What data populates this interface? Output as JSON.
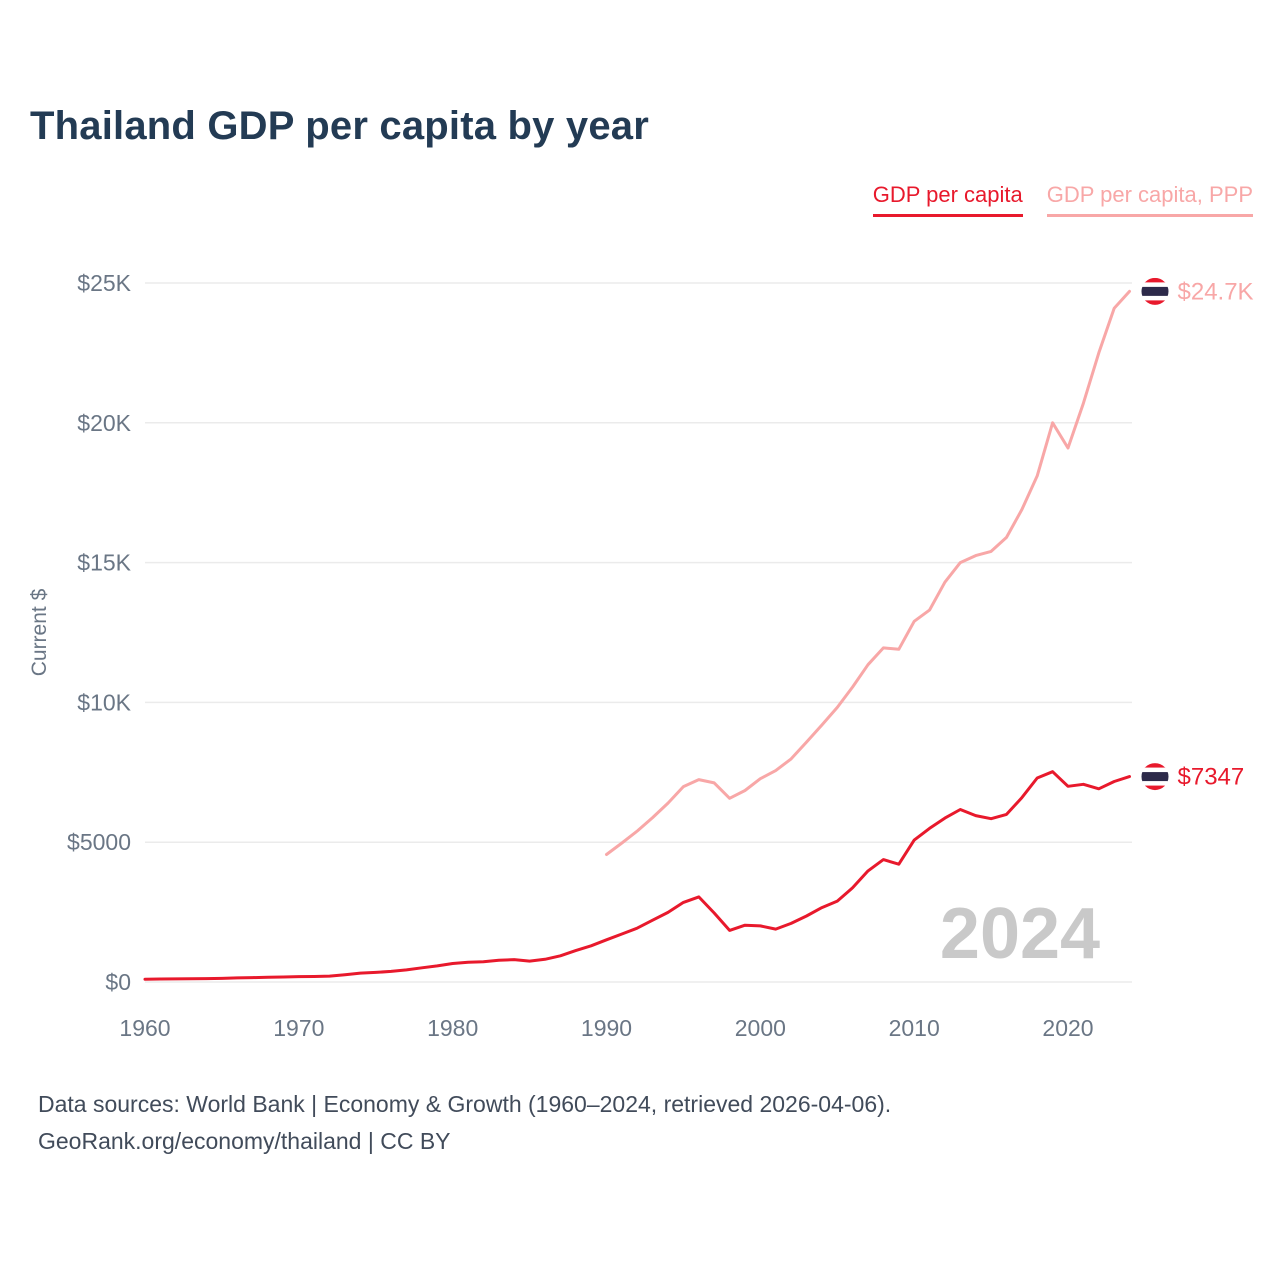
{
  "header": {
    "title": "Thailand GDP per capita by year"
  },
  "footer": {
    "line1": "Data sources: World Bank | Economy & Growth (1960–2024, retrieved 2026-04-06).",
    "line2": "GeoRank.org/economy/thailand | CC BY"
  },
  "chart_data": {
    "type": "line",
    "title": "Thailand GDP per capita by year",
    "xlabel": "",
    "ylabel": "Current $",
    "watermark": "2024",
    "legend_position": "top-right",
    "grid": true,
    "x_range": [
      1960,
      2024
    ],
    "y_range": [
      0,
      25000
    ],
    "xticks": [
      1960,
      1970,
      1980,
      1990,
      2000,
      2010,
      2020
    ],
    "yticks": [
      {
        "value": 0,
        "label": "$0"
      },
      {
        "value": 5000,
        "label": "$5000"
      },
      {
        "value": 10000,
        "label": "$10K"
      },
      {
        "value": 15000,
        "label": "$15K"
      },
      {
        "value": 20000,
        "label": "$20K"
      },
      {
        "value": 25000,
        "label": "$25K"
      }
    ],
    "end_marker": "thailand-flag",
    "flag_colors": {
      "red": "#e8192c",
      "white": "#ffffff",
      "blue": "#2d2a4a"
    },
    "series": [
      {
        "name": "GDP per capita",
        "color": "#e8192c",
        "end_label": "$7347",
        "end_value": 7347,
        "start_year": 1960,
        "values": [
          101,
          107,
          111,
          115,
          120,
          129,
          148,
          157,
          167,
          178,
          192,
          196,
          212,
          262,
          317,
          342,
          380,
          432,
          507,
          577,
          663,
          704,
          724,
          777,
          800,
          748,
          813,
          937,
          1123,
          1295,
          1509,
          1716,
          1928,
          2209,
          2491,
          2847,
          3044,
          2468,
          1846,
          2033,
          2008,
          1893,
          2096,
          2359,
          2660,
          2894,
          3369,
          3973,
          4379,
          4213,
          5076,
          5492,
          5861,
          6168,
          5952,
          5840,
          5993,
          6594,
          7296,
          7520,
          7000,
          7070,
          6910,
          7170,
          7347
        ]
      },
      {
        "name": "GDP per capita, PPP",
        "color": "#f8a7a7",
        "end_label": "$24.7K",
        "end_value": 24700,
        "start_year": 1990,
        "values": [
          4560,
          4970,
          5400,
          5880,
          6400,
          6990,
          7240,
          7120,
          6570,
          6850,
          7270,
          7560,
          7980,
          8580,
          9190,
          9820,
          10550,
          11350,
          11950,
          11900,
          12900,
          13300,
          14300,
          15000,
          15250,
          15400,
          15900,
          16900,
          18100,
          20000,
          19100,
          20700,
          22500,
          24100,
          24700
        ]
      }
    ]
  }
}
